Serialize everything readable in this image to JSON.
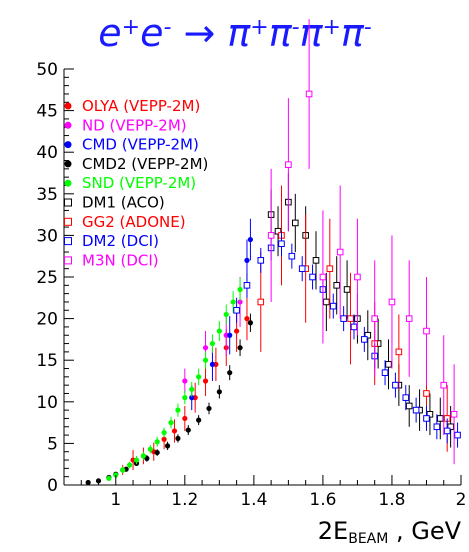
{
  "chart_data": {
    "type": "scatter",
    "title": {
      "lhs_particle": "e",
      "lhs_charges": [
        "+",
        "-"
      ],
      "arrow": "→",
      "rhs_particle": "π",
      "rhs_charges": [
        "+",
        "-",
        "+",
        "-"
      ]
    },
    "xlabel": {
      "main": "2E",
      "sub": "BEAM",
      "unit": ", GeV"
    },
    "xlim": [
      0.85,
      2.0
    ],
    "ylim": [
      0,
      50
    ],
    "x_ticks": [
      1,
      1.2,
      1.4,
      1.6,
      1.8,
      2
    ],
    "x_tick_labels": [
      "1",
      "1.2",
      "1.4",
      "1.6",
      "1.8",
      "2"
    ],
    "y_ticks": [
      0,
      5,
      10,
      15,
      20,
      25,
      30,
      35,
      40,
      45,
      50
    ],
    "y_tick_labels": [
      "0",
      "5",
      "10",
      "15",
      "20",
      "25",
      "30",
      "35",
      "40",
      "45",
      "50"
    ],
    "legend_position": "top-left",
    "series": [
      {
        "name": "OLYA (VEPP-2M)",
        "color": "#ff0000",
        "marker": "filled",
        "points": [
          [
            1.02,
            1.8,
            0.6
          ],
          [
            1.05,
            3.0,
            1.2
          ],
          [
            1.08,
            3.5,
            1.0
          ],
          [
            1.11,
            4.0,
            1.1
          ],
          [
            1.14,
            5.5,
            1.2
          ],
          [
            1.17,
            6.5,
            1.4
          ],
          [
            1.2,
            8.0,
            1.5
          ],
          [
            1.23,
            10.5,
            1.8
          ],
          [
            1.26,
            12.5,
            1.8
          ],
          [
            1.29,
            14.5,
            2.0
          ],
          [
            1.32,
            16.5,
            2.2
          ],
          [
            1.35,
            18.5,
            2.5
          ],
          [
            1.38,
            20.0,
            2.6
          ]
        ]
      },
      {
        "name": "ND (VEPP-2M)",
        "color": "#ff00ff",
        "marker": "filled",
        "points": [
          [
            1.2,
            12.5,
            1.5
          ],
          [
            1.26,
            16.5,
            2.0
          ],
          [
            1.32,
            18.0,
            2.5
          ],
          [
            1.36,
            22.0,
            3.0
          ]
        ]
      },
      {
        "name": "CMD (VEPP-2M)",
        "color": "#0000ff",
        "marker": "filled",
        "points": [
          [
            1.22,
            10.5,
            1.5
          ],
          [
            1.28,
            14.5,
            2.0
          ],
          [
            1.33,
            18.0,
            2.3
          ],
          [
            1.38,
            27.0,
            2.5
          ],
          [
            1.39,
            29.5,
            2.5
          ]
        ]
      },
      {
        "name": "CMD2 (VEPP-2M)",
        "color": "#000000",
        "marker": "filled",
        "points": [
          [
            0.92,
            0.3,
            0.1
          ],
          [
            0.95,
            0.5,
            0.1
          ],
          [
            0.98,
            0.9,
            0.2
          ],
          [
            1.0,
            1.3,
            0.2
          ],
          [
            1.03,
            1.9,
            0.3
          ],
          [
            1.06,
            2.6,
            0.3
          ],
          [
            1.09,
            3.2,
            0.4
          ],
          [
            1.12,
            3.9,
            0.4
          ],
          [
            1.15,
            4.7,
            0.5
          ],
          [
            1.18,
            5.6,
            0.5
          ],
          [
            1.21,
            6.6,
            0.6
          ],
          [
            1.24,
            7.8,
            0.6
          ],
          [
            1.27,
            9.2,
            0.7
          ],
          [
            1.3,
            11.2,
            0.8
          ],
          [
            1.33,
            13.5,
            0.9
          ],
          [
            1.36,
            16.5,
            1.0
          ],
          [
            1.39,
            19.5,
            1.1
          ]
        ]
      },
      {
        "name": "SND (VEPP-2M)",
        "color": "#00ff00",
        "marker": "filled",
        "points": [
          [
            0.98,
            0.8,
            0.3
          ],
          [
            1.0,
            1.2,
            0.3
          ],
          [
            1.02,
            1.8,
            0.4
          ],
          [
            1.04,
            2.4,
            0.4
          ],
          [
            1.06,
            3.0,
            0.5
          ],
          [
            1.08,
            3.5,
            0.5
          ],
          [
            1.1,
            4.3,
            0.5
          ],
          [
            1.12,
            5.2,
            0.6
          ],
          [
            1.14,
            6.3,
            0.6
          ],
          [
            1.16,
            7.5,
            0.7
          ],
          [
            1.18,
            9.0,
            0.8
          ],
          [
            1.2,
            10.5,
            0.8
          ],
          [
            1.22,
            11.5,
            0.9
          ],
          [
            1.24,
            13.0,
            1.0
          ],
          [
            1.26,
            15.0,
            1.0
          ],
          [
            1.28,
            17.0,
            1.1
          ],
          [
            1.3,
            18.5,
            1.2
          ],
          [
            1.32,
            20.5,
            1.2
          ],
          [
            1.34,
            22.0,
            1.3
          ],
          [
            1.36,
            23.5,
            1.4
          ],
          [
            1.38,
            24.0,
            1.5
          ]
        ]
      },
      {
        "name": "DM1 (ACO)",
        "color": "#000000",
        "marker": "open",
        "points": [
          [
            1.45,
            32.5,
            3.0
          ],
          [
            1.47,
            30.5,
            3.0
          ],
          [
            1.5,
            34.0,
            3.5
          ],
          [
            1.52,
            31.5,
            3.5
          ],
          [
            1.55,
            30.0,
            3.5
          ],
          [
            1.58,
            27.0,
            3.5
          ],
          [
            1.61,
            22.0,
            3.5
          ],
          [
            1.64,
            24.0,
            3.5
          ],
          [
            1.67,
            23.5,
            3.5
          ],
          [
            1.7,
            20.0,
            3.0
          ],
          [
            1.73,
            18.0,
            3.0
          ],
          [
            1.76,
            17.0,
            3.0
          ],
          [
            1.79,
            14.5,
            3.0
          ],
          [
            1.82,
            12.0,
            2.5
          ],
          [
            1.85,
            9.5,
            2.5
          ],
          [
            1.88,
            9.0,
            2.5
          ],
          [
            1.91,
            8.5,
            2.5
          ],
          [
            1.94,
            8.0,
            2.5
          ],
          [
            1.97,
            7.0,
            2.5
          ]
        ]
      },
      {
        "name": "GG2 (ADONE)",
        "color": "#ff0000",
        "marker": "open",
        "points": [
          [
            1.42,
            22.0,
            6.0
          ],
          [
            1.48,
            30.0,
            6.0
          ],
          [
            1.55,
            26.0,
            6.5
          ],
          [
            1.62,
            26.0,
            6.0
          ],
          [
            1.68,
            20.0,
            5.5
          ],
          [
            1.75,
            17.0,
            5.0
          ],
          [
            1.82,
            16.0,
            4.5
          ],
          [
            1.9,
            11.0,
            4.0
          ],
          [
            1.96,
            8.0,
            4.0
          ]
        ]
      },
      {
        "name": "DM2 (DCI)",
        "color": "#0000ff",
        "marker": "open",
        "points": [
          [
            1.35,
            21.0,
            1.5
          ],
          [
            1.38,
            24.0,
            1.5
          ],
          [
            1.42,
            27.0,
            1.5
          ],
          [
            1.45,
            28.5,
            1.5
          ],
          [
            1.48,
            29.0,
            1.5
          ],
          [
            1.51,
            27.5,
            1.5
          ],
          [
            1.54,
            26.0,
            1.5
          ],
          [
            1.57,
            25.0,
            1.5
          ],
          [
            1.6,
            23.5,
            1.5
          ],
          [
            1.63,
            21.5,
            1.5
          ],
          [
            1.66,
            20.0,
            1.5
          ],
          [
            1.69,
            19.0,
            1.5
          ],
          [
            1.72,
            17.5,
            1.5
          ],
          [
            1.75,
            15.5,
            1.5
          ],
          [
            1.78,
            13.5,
            1.5
          ],
          [
            1.81,
            12.0,
            1.5
          ],
          [
            1.84,
            10.5,
            1.5
          ],
          [
            1.87,
            9.0,
            1.5
          ],
          [
            1.9,
            8.0,
            1.5
          ],
          [
            1.93,
            7.0,
            1.5
          ],
          [
            1.96,
            6.5,
            1.5
          ],
          [
            1.99,
            6.0,
            1.5
          ]
        ]
      },
      {
        "name": "M3N (DCI)",
        "color": "#ff00ff",
        "marker": "open",
        "points": [
          [
            1.45,
            30.0,
            8.0
          ],
          [
            1.5,
            38.5,
            8.0
          ],
          [
            1.56,
            47.0,
            9.0
          ],
          [
            1.6,
            25.0,
            8.0
          ],
          [
            1.65,
            28.0,
            8.0
          ],
          [
            1.7,
            25.0,
            7.0
          ],
          [
            1.75,
            20.0,
            7.0
          ],
          [
            1.8,
            22.0,
            8.0
          ],
          [
            1.85,
            20.0,
            7.0
          ],
          [
            1.9,
            18.5,
            6.5
          ],
          [
            1.95,
            12.0,
            6.0
          ],
          [
            1.98,
            8.5,
            6.0
          ]
        ]
      }
    ]
  }
}
